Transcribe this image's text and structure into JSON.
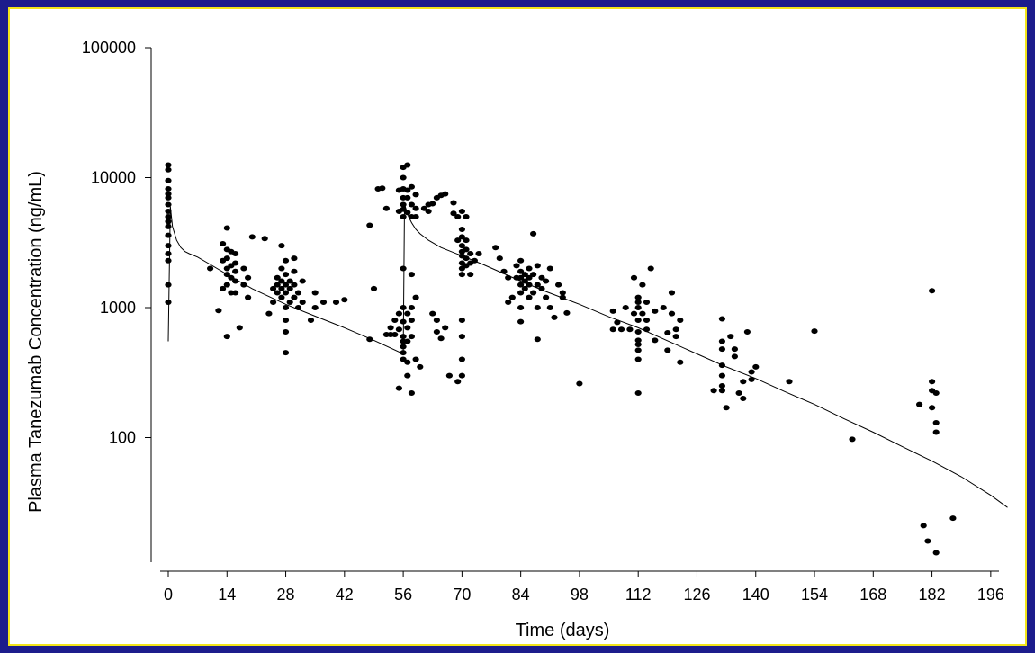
{
  "chart_data": {
    "type": "scatter",
    "title": "",
    "xlabel": "Time (days)",
    "ylabel": "Plasma Tanezumab Concentration (ng/mL)",
    "xlim": [
      0,
      200
    ],
    "ylim": [
      10,
      100000
    ],
    "yscale": "log",
    "grid": false,
    "legend": "none",
    "x_ticks": [
      0,
      14,
      28,
      42,
      56,
      70,
      84,
      98,
      112,
      126,
      140,
      154,
      168,
      182,
      196
    ],
    "y_ticks": [
      100,
      1000,
      10000,
      100000
    ],
    "colors": {
      "background": "#1c1c8c",
      "frame_border": "#f2e51a",
      "points": "#000000",
      "line": "#000000"
    },
    "series": [
      {
        "type": "line",
        "x": [
          0,
          0.5,
          1,
          2,
          3,
          4,
          5,
          7,
          10,
          14,
          20,
          28,
          35,
          42,
          49,
          56,
          56.3,
          57,
          58,
          59,
          60,
          62,
          65,
          70,
          75,
          84,
          90,
          98,
          105,
          112,
          119,
          126,
          133,
          140,
          147,
          154,
          161,
          168,
          175,
          182,
          189,
          196,
          200
        ],
        "y": [
          550,
          6000,
          4200,
          3300,
          2900,
          2700,
          2600,
          2450,
          2150,
          1800,
          1400,
          1060,
          860,
          700,
          560,
          440,
          6300,
          5200,
          4500,
          4000,
          3700,
          3300,
          2900,
          2500,
          2150,
          1600,
          1330,
          1060,
          850,
          700,
          555,
          440,
          350,
          285,
          225,
          180,
          140,
          110,
          85,
          66,
          50,
          36,
          29
        ]
      },
      {
        "type": "scatter",
        "points": [
          [
            0,
            5000
          ],
          [
            0,
            6200
          ],
          [
            0,
            7000
          ],
          [
            0,
            8200
          ],
          [
            0,
            9500
          ],
          [
            0,
            11500
          ],
          [
            0,
            12500
          ],
          [
            0,
            4200
          ],
          [
            0,
            3600
          ],
          [
            0,
            3000
          ],
          [
            0,
            2600
          ],
          [
            0,
            2300
          ],
          [
            0,
            1500
          ],
          [
            0,
            1100
          ],
          [
            0,
            5500
          ],
          [
            0,
            7500
          ],
          [
            0,
            4600
          ],
          [
            10,
            2000
          ],
          [
            12,
            950
          ],
          [
            13,
            1400
          ],
          [
            13,
            2300
          ],
          [
            13,
            3100
          ],
          [
            14,
            1500
          ],
          [
            14,
            1800
          ],
          [
            14,
            2000
          ],
          [
            14,
            2400
          ],
          [
            14,
            2800
          ],
          [
            14,
            4100
          ],
          [
            14,
            600
          ],
          [
            15,
            1300
          ],
          [
            15,
            1700
          ],
          [
            15,
            2100
          ],
          [
            15,
            2700
          ],
          [
            16,
            1600
          ],
          [
            16,
            1900
          ],
          [
            16,
            2200
          ],
          [
            16,
            2600
          ],
          [
            16,
            1300
          ],
          [
            17,
            700
          ],
          [
            18,
            1500
          ],
          [
            18,
            2000
          ],
          [
            19,
            1700
          ],
          [
            19,
            1200
          ],
          [
            20,
            3500
          ],
          [
            23,
            3400
          ],
          [
            24,
            900
          ],
          [
            25,
            1400
          ],
          [
            25,
            1100
          ],
          [
            26,
            1500
          ],
          [
            26,
            1700
          ],
          [
            26,
            1300
          ],
          [
            27,
            1200
          ],
          [
            27,
            1600
          ],
          [
            27,
            2000
          ],
          [
            27,
            3000
          ],
          [
            27,
            1400
          ],
          [
            28,
            1000
          ],
          [
            28,
            1300
          ],
          [
            28,
            1500
          ],
          [
            28,
            1800
          ],
          [
            28,
            2300
          ],
          [
            28,
            800
          ],
          [
            28,
            650
          ],
          [
            28,
            450
          ],
          [
            29,
            1100
          ],
          [
            29,
            1400
          ],
          [
            29,
            1600
          ],
          [
            30,
            1200
          ],
          [
            30,
            1500
          ],
          [
            30,
            1900
          ],
          [
            30,
            2400
          ],
          [
            31,
            1000
          ],
          [
            31,
            1300
          ],
          [
            32,
            1100
          ],
          [
            32,
            1600
          ],
          [
            34,
            800
          ],
          [
            35,
            1000
          ],
          [
            35,
            1300
          ],
          [
            37,
            1100
          ],
          [
            40,
            1100
          ],
          [
            42,
            1150
          ],
          [
            48,
            570
          ],
          [
            48,
            4300
          ],
          [
            49,
            1400
          ],
          [
            50,
            8200
          ],
          [
            51,
            8300
          ],
          [
            52,
            5800
          ],
          [
            52,
            620
          ],
          [
            53,
            620
          ],
          [
            53,
            700
          ],
          [
            54,
            800
          ],
          [
            54,
            620
          ],
          [
            55,
            8000
          ],
          [
            55,
            5500
          ],
          [
            55,
            900
          ],
          [
            55,
            680
          ],
          [
            55,
            240
          ],
          [
            56,
            5000
          ],
          [
            56,
            5700
          ],
          [
            56,
            6200
          ],
          [
            56,
            7000
          ],
          [
            56,
            8200
          ],
          [
            56,
            10000
          ],
          [
            56,
            12000
          ],
          [
            56,
            2000
          ],
          [
            56,
            1000
          ],
          [
            56,
            780
          ],
          [
            56,
            600
          ],
          [
            56,
            550
          ],
          [
            56,
            500
          ],
          [
            56,
            450
          ],
          [
            56,
            400
          ],
          [
            57,
            5400
          ],
          [
            57,
            7000
          ],
          [
            57,
            8000
          ],
          [
            57,
            12500
          ],
          [
            57,
            900
          ],
          [
            57,
            700
          ],
          [
            57,
            550
          ],
          [
            57,
            380
          ],
          [
            57,
            300
          ],
          [
            58,
            8500
          ],
          [
            58,
            6200
          ],
          [
            58,
            5000
          ],
          [
            58,
            1800
          ],
          [
            58,
            1000
          ],
          [
            58,
            800
          ],
          [
            58,
            600
          ],
          [
            58,
            220
          ],
          [
            59,
            5800
          ],
          [
            59,
            7400
          ],
          [
            59,
            5000
          ],
          [
            59,
            1200
          ],
          [
            59,
            400
          ],
          [
            60,
            350
          ],
          [
            61,
            5800
          ],
          [
            62,
            5500
          ],
          [
            62,
            6200
          ],
          [
            63,
            6300
          ],
          [
            63,
            900
          ],
          [
            64,
            7000
          ],
          [
            64,
            800
          ],
          [
            64,
            650
          ],
          [
            65,
            7300
          ],
          [
            65,
            580
          ],
          [
            66,
            7500
          ],
          [
            66,
            700
          ],
          [
            67,
            300
          ],
          [
            68,
            5300
          ],
          [
            68,
            6400
          ],
          [
            69,
            5000
          ],
          [
            69,
            3300
          ],
          [
            69,
            270
          ],
          [
            70,
            1800
          ],
          [
            70,
            2000
          ],
          [
            70,
            2200
          ],
          [
            70,
            2500
          ],
          [
            70,
            2700
          ],
          [
            70,
            3000
          ],
          [
            70,
            3500
          ],
          [
            70,
            4000
          ],
          [
            70,
            5500
          ],
          [
            70,
            800
          ],
          [
            70,
            600
          ],
          [
            70,
            400
          ],
          [
            70,
            300
          ],
          [
            71,
            2100
          ],
          [
            71,
            2400
          ],
          [
            71,
            2800
          ],
          [
            71,
            3300
          ],
          [
            71,
            5000
          ],
          [
            72,
            1800
          ],
          [
            72,
            2200
          ],
          [
            72,
            2600
          ],
          [
            73,
            2300
          ],
          [
            74,
            2600
          ],
          [
            78,
            2900
          ],
          [
            79,
            2400
          ],
          [
            80,
            1900
          ],
          [
            81,
            1700
          ],
          [
            81,
            1100
          ],
          [
            82,
            1200
          ],
          [
            83,
            1700
          ],
          [
            83,
            2100
          ],
          [
            84,
            1500
          ],
          [
            84,
            1700
          ],
          [
            84,
            1900
          ],
          [
            84,
            2300
          ],
          [
            84,
            1300
          ],
          [
            84,
            1000
          ],
          [
            84,
            780
          ],
          [
            85,
            1400
          ],
          [
            85,
            1600
          ],
          [
            85,
            1800
          ],
          [
            86,
            1700
          ],
          [
            86,
            2000
          ],
          [
            86,
            1500
          ],
          [
            86,
            1200
          ],
          [
            87,
            1800
          ],
          [
            87,
            1300
          ],
          [
            87,
            3700
          ],
          [
            88,
            2100
          ],
          [
            88,
            1500
          ],
          [
            88,
            1000
          ],
          [
            88,
            570
          ],
          [
            89,
            1400
          ],
          [
            89,
            1700
          ],
          [
            90,
            1600
          ],
          [
            90,
            1200
          ],
          [
            91,
            2000
          ],
          [
            91,
            1000
          ],
          [
            92,
            840
          ],
          [
            93,
            1500
          ],
          [
            94,
            1200
          ],
          [
            94,
            1300
          ],
          [
            95,
            910
          ],
          [
            98,
            260
          ],
          [
            106,
            680
          ],
          [
            106,
            940
          ],
          [
            107,
            770
          ],
          [
            108,
            680
          ],
          [
            109,
            1000
          ],
          [
            110,
            680
          ],
          [
            111,
            1700
          ],
          [
            111,
            900
          ],
          [
            112,
            1000
          ],
          [
            112,
            1100
          ],
          [
            112,
            1200
          ],
          [
            112,
            800
          ],
          [
            112,
            650
          ],
          [
            112,
            560
          ],
          [
            112,
            520
          ],
          [
            112,
            470
          ],
          [
            112,
            400
          ],
          [
            112,
            220
          ],
          [
            113,
            1500
          ],
          [
            113,
            900
          ],
          [
            114,
            1100
          ],
          [
            114,
            800
          ],
          [
            114,
            680
          ],
          [
            115,
            2000
          ],
          [
            116,
            940
          ],
          [
            116,
            560
          ],
          [
            118,
            1000
          ],
          [
            119,
            640
          ],
          [
            119,
            470
          ],
          [
            120,
            900
          ],
          [
            120,
            1300
          ],
          [
            121,
            680
          ],
          [
            121,
            600
          ],
          [
            122,
            800
          ],
          [
            122,
            380
          ],
          [
            130,
            230
          ],
          [
            132,
            230
          ],
          [
            132,
            250
          ],
          [
            132,
            300
          ],
          [
            132,
            360
          ],
          [
            132,
            480
          ],
          [
            132,
            550
          ],
          [
            132,
            820
          ],
          [
            133,
            170
          ],
          [
            134,
            600
          ],
          [
            135,
            420
          ],
          [
            135,
            480
          ],
          [
            136,
            220
          ],
          [
            137,
            270
          ],
          [
            137,
            200
          ],
          [
            138,
            650
          ],
          [
            139,
            280
          ],
          [
            139,
            320
          ],
          [
            140,
            350
          ],
          [
            148,
            270
          ],
          [
            154,
            660
          ],
          [
            163,
            97
          ],
          [
            179,
            180
          ],
          [
            180,
            21
          ],
          [
            181,
            16
          ],
          [
            182,
            1350
          ],
          [
            182,
            270
          ],
          [
            182,
            230
          ],
          [
            182,
            170
          ],
          [
            183,
            220
          ],
          [
            183,
            130
          ],
          [
            183,
            110
          ],
          [
            183,
            13
          ],
          [
            187,
            24
          ]
        ]
      }
    ]
  }
}
